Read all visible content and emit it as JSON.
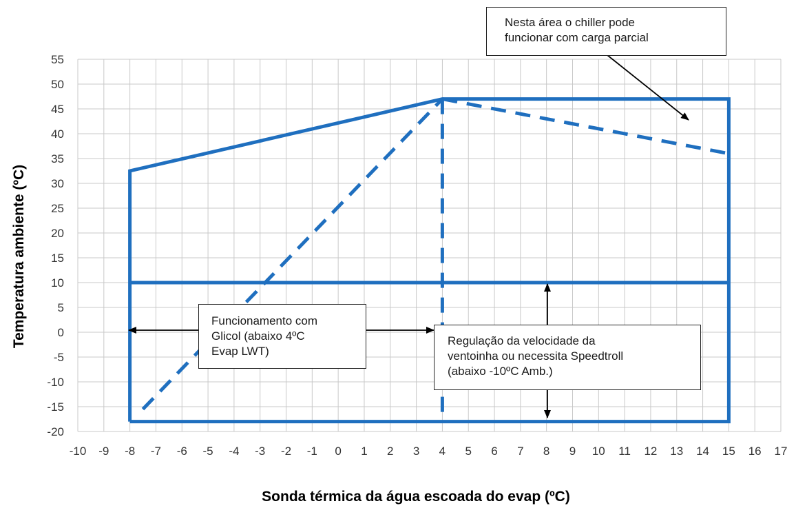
{
  "chart_data": {
    "type": "line",
    "xlabel": "Sonda térmica da água escoada do evap (ºC)",
    "ylabel": "Temperatura ambiente (ºC)",
    "xlim": [
      -10,
      17
    ],
    "ylim": [
      -20,
      55
    ],
    "xticks": [
      -10,
      -9,
      -8,
      -7,
      -6,
      -5,
      -4,
      -3,
      -2,
      -1,
      0,
      1,
      2,
      3,
      4,
      5,
      6,
      7,
      8,
      9,
      10,
      11,
      12,
      13,
      14,
      15,
      16,
      17
    ],
    "yticks": [
      55,
      50,
      45,
      40,
      35,
      30,
      25,
      20,
      15,
      10,
      5,
      0,
      -5,
      -10,
      -15,
      -20
    ],
    "grid": true,
    "series": [
      {
        "style": "solid",
        "x": [
          -8,
          -8,
          15,
          15,
          4,
          -8
        ],
        "y": [
          -18,
          32.5,
          -18,
          47,
          47,
          32.5
        ],
        "points": [
          [
            -8,
            -18
          ],
          [
            -8,
            32.5
          ],
          [
            4,
            47
          ],
          [
            15,
            47
          ],
          [
            15,
            -18
          ],
          [
            -8,
            -18
          ]
        ]
      },
      {
        "style": "solid",
        "points": [
          [
            -8,
            10
          ],
          [
            15,
            10
          ]
        ]
      },
      {
        "style": "dashed",
        "points": [
          [
            -7.5,
            -15.5
          ],
          [
            4,
            47
          ]
        ]
      },
      {
        "style": "dashed",
        "points": [
          [
            4,
            47
          ],
          [
            4,
            -18
          ]
        ]
      },
      {
        "style": "dashed",
        "points": [
          [
            4,
            47
          ],
          [
            15,
            36
          ]
        ]
      }
    ],
    "annotations": [
      {
        "lines": [
          "Nesta área o chiller pode",
          "funcionar com carga parcial"
        ]
      },
      {
        "lines": [
          "Funcionamento com",
          "Glicol (abaixo 4ºC",
          "Evap LWT)"
        ]
      },
      {
        "lines": [
          "Regulação da velocidade da",
          "ventoinha ou necessita Speedtroll",
          "(abaixo -10ºC Amb.)"
        ]
      }
    ]
  }
}
